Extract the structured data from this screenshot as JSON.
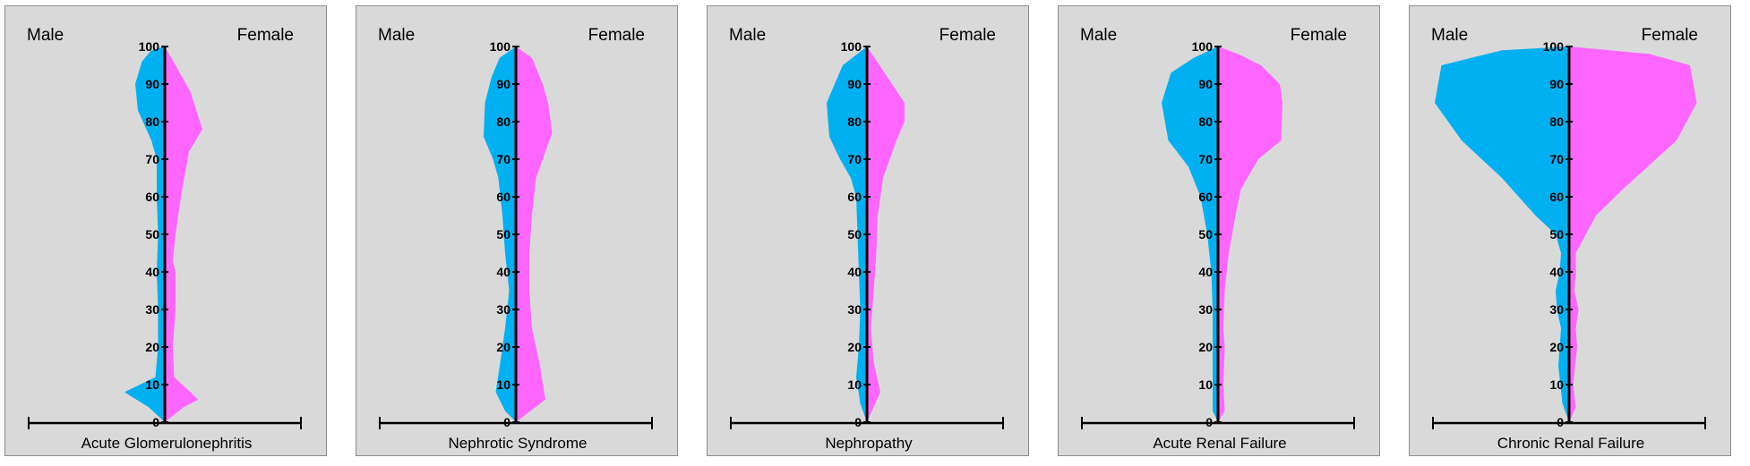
{
  "colors": {
    "male": "#00b0f0",
    "female": "#ff66ff",
    "background": "#d9d9d9",
    "axis": "#000000"
  },
  "chart_data": [
    {
      "type": "area",
      "title": "Acute Glomerulonephritis",
      "left_label": "Male",
      "right_label": "Female",
      "ylim": [
        0,
        100
      ],
      "xlim": [
        -100,
        100
      ],
      "y_ticks": [
        0,
        10,
        20,
        30,
        40,
        50,
        60,
        70,
        80,
        90,
        100
      ],
      "series": [
        {
          "name": "Male",
          "x": [
            0,
            12,
            30,
            7,
            5,
            5,
            6,
            5,
            6,
            6,
            10,
            20,
            22,
            17,
            10,
            0
          ],
          "y": [
            0,
            4,
            8,
            12,
            20,
            30,
            40,
            50,
            60,
            70,
            75,
            83,
            90,
            96,
            99,
            100
          ]
        },
        {
          "name": "Female",
          "x": [
            0,
            14,
            25,
            7,
            6,
            8,
            8,
            6,
            8,
            12,
            18,
            28,
            19,
            8,
            0
          ],
          "y": [
            0,
            4,
            6,
            12,
            20,
            30,
            40,
            43,
            50,
            60,
            72,
            78,
            88,
            95,
            100
          ]
        }
      ]
    },
    {
      "type": "area",
      "title": "Nephrotic Syndrome",
      "left_label": "Male",
      "right_label": "Female",
      "ylim": [
        0,
        100
      ],
      "xlim": [
        -100,
        100
      ],
      "y_ticks": [
        0,
        10,
        20,
        30,
        40,
        50,
        60,
        70,
        80,
        90,
        100
      ],
      "series": [
        {
          "name": "Male",
          "x": [
            0,
            8,
            15,
            12,
            8,
            5,
            8,
            10,
            13,
            17,
            24,
            23,
            18,
            12,
            0
          ],
          "y": [
            0,
            3,
            8,
            15,
            25,
            35,
            45,
            55,
            65,
            70,
            76,
            85,
            92,
            97,
            100
          ]
        },
        {
          "name": "Female",
          "x": [
            0,
            22,
            18,
            12,
            10,
            10,
            12,
            15,
            20,
            27,
            24,
            20,
            12,
            0
          ],
          "y": [
            0,
            6,
            15,
            25,
            35,
            45,
            55,
            65,
            70,
            77,
            85,
            90,
            97,
            100
          ]
        }
      ]
    },
    {
      "type": "area",
      "title": "Nephropathy",
      "left_label": "Male",
      "right_label": "Female",
      "ylim": [
        0,
        100
      ],
      "xlim": [
        -100,
        100
      ],
      "y_ticks": [
        0,
        10,
        20,
        30,
        40,
        50,
        60,
        70,
        80,
        90,
        100
      ],
      "series": [
        {
          "name": "Male",
          "x": [
            0,
            5,
            8,
            6,
            5,
            6,
            7,
            8,
            12,
            20,
            28,
            30,
            18,
            0
          ],
          "y": [
            0,
            5,
            12,
            20,
            30,
            40,
            50,
            60,
            65,
            70,
            76,
            85,
            95,
            100
          ]
        },
        {
          "name": "Female",
          "x": [
            0,
            10,
            5,
            3,
            5,
            7,
            8,
            10,
            12,
            22,
            28,
            28,
            15,
            0
          ],
          "y": [
            0,
            8,
            16,
            25,
            35,
            45,
            55,
            60,
            65,
            75,
            80,
            85,
            92,
            100
          ]
        }
      ]
    },
    {
      "type": "area",
      "title": "Acute Renal Failure",
      "left_label": "Male",
      "right_label": "Female",
      "ylim": [
        0,
        100
      ],
      "xlim": [
        -100,
        100
      ],
      "y_ticks": [
        0,
        10,
        20,
        30,
        40,
        50,
        60,
        70,
        80,
        90,
        100
      ],
      "series": [
        {
          "name": "Male",
          "x": [
            0,
            4,
            4,
            4,
            4,
            5,
            8,
            13,
            22,
            37,
            42,
            35,
            18,
            0
          ],
          "y": [
            0,
            3,
            10,
            20,
            30,
            40,
            50,
            60,
            68,
            75,
            85,
            93,
            97,
            100
          ]
        },
        {
          "name": "Female",
          "x": [
            0,
            5,
            4,
            5,
            4,
            5,
            8,
            13,
            17,
            30,
            47,
            48,
            46,
            32,
            15,
            0
          ],
          "y": [
            0,
            3,
            10,
            20,
            25,
            35,
            45,
            55,
            62,
            70,
            75,
            85,
            90,
            95,
            98,
            100
          ]
        }
      ]
    },
    {
      "type": "area",
      "title": "Chronic Renal Failure",
      "left_label": "Male",
      "right_label": "Female",
      "ylim": [
        0,
        100
      ],
      "xlim": [
        -100,
        100
      ],
      "y_ticks": [
        0,
        10,
        20,
        30,
        40,
        50,
        60,
        70,
        80,
        90,
        100
      ],
      "series": [
        {
          "name": "Male",
          "x": [
            0,
            5,
            8,
            6,
            9,
            10,
            7,
            6,
            10,
            25,
            50,
            80,
            100,
            95,
            50,
            0
          ],
          "y": [
            0,
            5,
            15,
            25,
            30,
            35,
            40,
            45,
            50,
            55,
            65,
            75,
            85,
            95,
            99,
            100
          ]
        },
        {
          "name": "Female",
          "x": [
            0,
            5,
            3,
            6,
            5,
            7,
            4,
            5,
            5,
            20,
            40,
            80,
            95,
            90,
            60,
            0
          ],
          "y": [
            0,
            4,
            10,
            20,
            25,
            30,
            35,
            40,
            45,
            55,
            62,
            75,
            85,
            95,
            98,
            100
          ]
        }
      ]
    }
  ]
}
